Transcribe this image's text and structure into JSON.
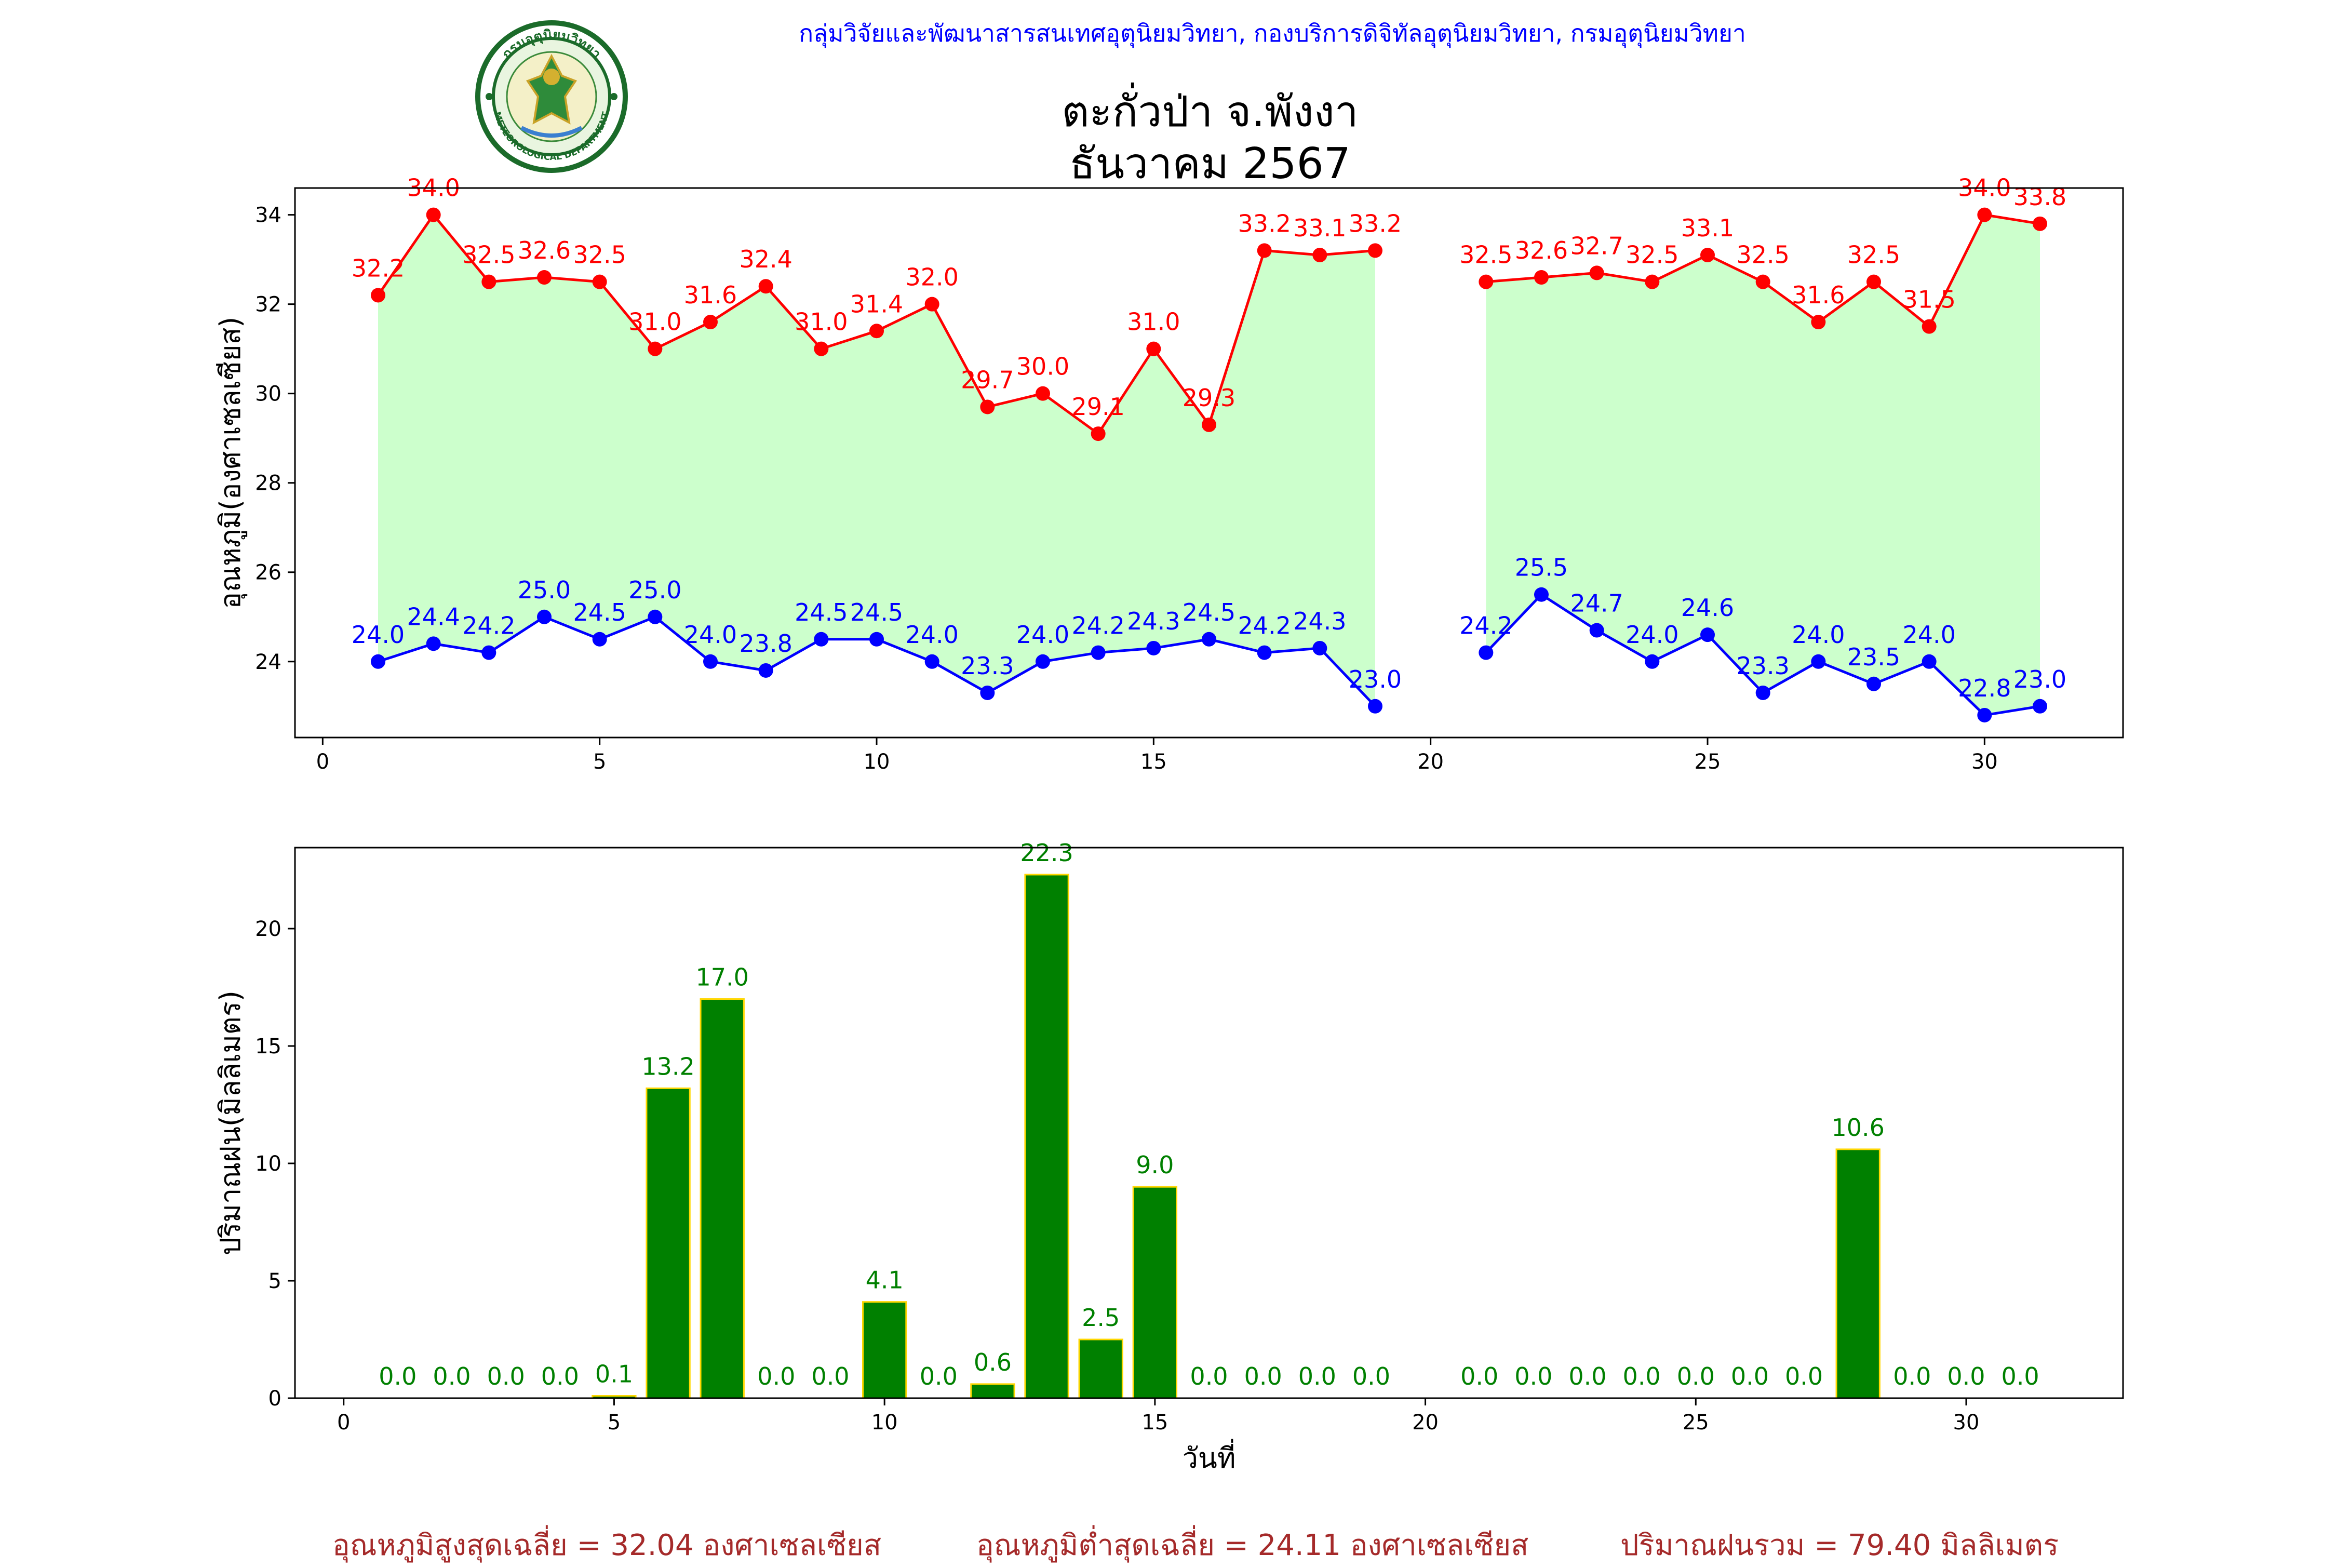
{
  "header": {
    "org_line": "กลุ่มวิจัยและพัฒนาสารสนเทศอุตุนิยมวิทยา, กองบริการดิจิทัลอุตุนิยมวิทยา, กรมอุตุนิยมวิทยา",
    "title_station": "ตะกั่วป่า จ.พังงา",
    "title_period": "ธันวาคม 2567",
    "logo_text_top": "กรมอุตุนิยมวิทยา",
    "logo_text_bottom": "METEOROLOGICAL DEPARTMENT"
  },
  "footer": {
    "avg_max": "อุณหภูมิสูงสุดเฉลี่ย = 32.04 องศาเซลเซียส",
    "avg_min": "อุณหภูมิต่ำสุดเฉลี่ย = 24.11 องศาเซลเซียส",
    "total_rain": "ปริมาณฝนรวม = 79.40 มิลลิเมตร"
  },
  "colors": {
    "max_line": "#ff0000",
    "min_line": "#0000ff",
    "fill": "#ccffcc",
    "rain_bar": "#008000",
    "rain_edge": "#ffd700",
    "rain_label": "#008000",
    "footer": "#a52a2a",
    "header": "#0000ff"
  },
  "chart_data": [
    {
      "type": "line",
      "ylabel": "อุณหภูมิ(องศาเซลเซียส)",
      "xlim": [
        -0.5,
        32.5
      ],
      "ylim": [
        22.3,
        34.6
      ],
      "xticks": [
        0,
        5,
        10,
        15,
        20,
        25,
        30
      ],
      "yticks": [
        24,
        26,
        28,
        30,
        32,
        34
      ],
      "x": [
        1,
        2,
        3,
        4,
        5,
        6,
        7,
        8,
        9,
        10,
        11,
        12,
        13,
        14,
        15,
        16,
        17,
        18,
        19,
        20,
        21,
        22,
        23,
        24,
        25,
        26,
        27,
        28,
        29,
        30,
        31
      ],
      "series": [
        {
          "key": "max",
          "values": [
            32.2,
            34.0,
            32.5,
            32.6,
            32.5,
            31.0,
            31.6,
            32.4,
            31.0,
            31.4,
            32.0,
            29.7,
            30.0,
            29.1,
            31.0,
            29.3,
            33.2,
            33.1,
            33.2,
            null,
            32.5,
            32.6,
            32.7,
            32.5,
            33.1,
            32.5,
            31.6,
            32.5,
            31.5,
            34.0,
            33.8
          ],
          "labels": [
            "32.2",
            "34.0",
            "32.5",
            "32.6",
            "32.5",
            "31.0",
            "31.6",
            "32.4",
            "31.0",
            "31.4",
            "32.0",
            "29.7",
            "30.0",
            "29.1",
            "31.0",
            "29.3",
            "33.2",
            "33.1",
            "33.2",
            null,
            "32.5",
            "32.6",
            "32.7",
            "32.5",
            "33.1",
            "32.5",
            "31.6",
            "32.5",
            "31.5",
            "34.0",
            "33.8"
          ]
        },
        {
          "key": "min",
          "values": [
            24.0,
            24.4,
            24.2,
            25.0,
            24.5,
            25.0,
            24.0,
            23.8,
            24.5,
            24.5,
            24.0,
            23.3,
            24.0,
            24.2,
            24.3,
            24.5,
            24.2,
            24.3,
            23.0,
            null,
            24.2,
            25.5,
            24.7,
            24.0,
            24.6,
            23.3,
            24.0,
            23.5,
            24.0,
            22.8,
            23.0
          ],
          "labels": [
            "24.0",
            "24.4",
            "24.2",
            "25.0",
            "24.5",
            "25.0",
            "24.0",
            "23.8",
            "24.5",
            "24.5",
            "24.0",
            "23.3",
            "24.0",
            "24.2",
            "24.3",
            "24.5",
            "24.2",
            "24.3",
            "23.0",
            null,
            "24.2",
            "25.5",
            "24.7",
            "24.0",
            "24.6",
            "23.3",
            "24.0",
            "23.5",
            "24.0",
            "22.8",
            "23.0"
          ]
        }
      ],
      "fill_between": true,
      "grid": false
    },
    {
      "type": "bar",
      "xlabel": "วันที่",
      "ylabel": "ปริมาณฝน(มิลลิเมตร)",
      "xlim": [
        -0.9,
        32.9
      ],
      "ylim": [
        0,
        23.45
      ],
      "xticks": [
        0,
        5,
        10,
        15,
        20,
        25,
        30
      ],
      "yticks": [
        0,
        5,
        10,
        15,
        20
      ],
      "x": [
        1,
        2,
        3,
        4,
        5,
        6,
        7,
        8,
        9,
        10,
        11,
        12,
        13,
        14,
        15,
        16,
        17,
        18,
        19,
        20,
        21,
        22,
        23,
        24,
        25,
        26,
        27,
        28,
        29,
        30,
        31
      ],
      "values": [
        0.0,
        0.0,
        0.0,
        0.0,
        0.1,
        13.2,
        17.0,
        0.0,
        0.0,
        4.1,
        0.0,
        0.6,
        22.3,
        2.5,
        9.0,
        0.0,
        0.0,
        0.0,
        0.0,
        null,
        0.0,
        0.0,
        0.0,
        0.0,
        0.0,
        0.0,
        0.0,
        10.6,
        0.0,
        0.0,
        0.0
      ],
      "labels": [
        "0.0",
        "0.0",
        "0.0",
        "0.0",
        "0.1",
        "13.2",
        "17.0",
        "0.0",
        "0.0",
        "4.1",
        "0.0",
        "0.6",
        "22.3",
        "2.5",
        "9.0",
        "0.0",
        "0.0",
        "0.0",
        "0.0",
        null,
        "0.0",
        "0.0",
        "0.0",
        "0.0",
        "0.0",
        "0.0",
        "0.0",
        "10.6",
        "0.0",
        "0.0",
        "0.0"
      ],
      "grid": false
    }
  ]
}
